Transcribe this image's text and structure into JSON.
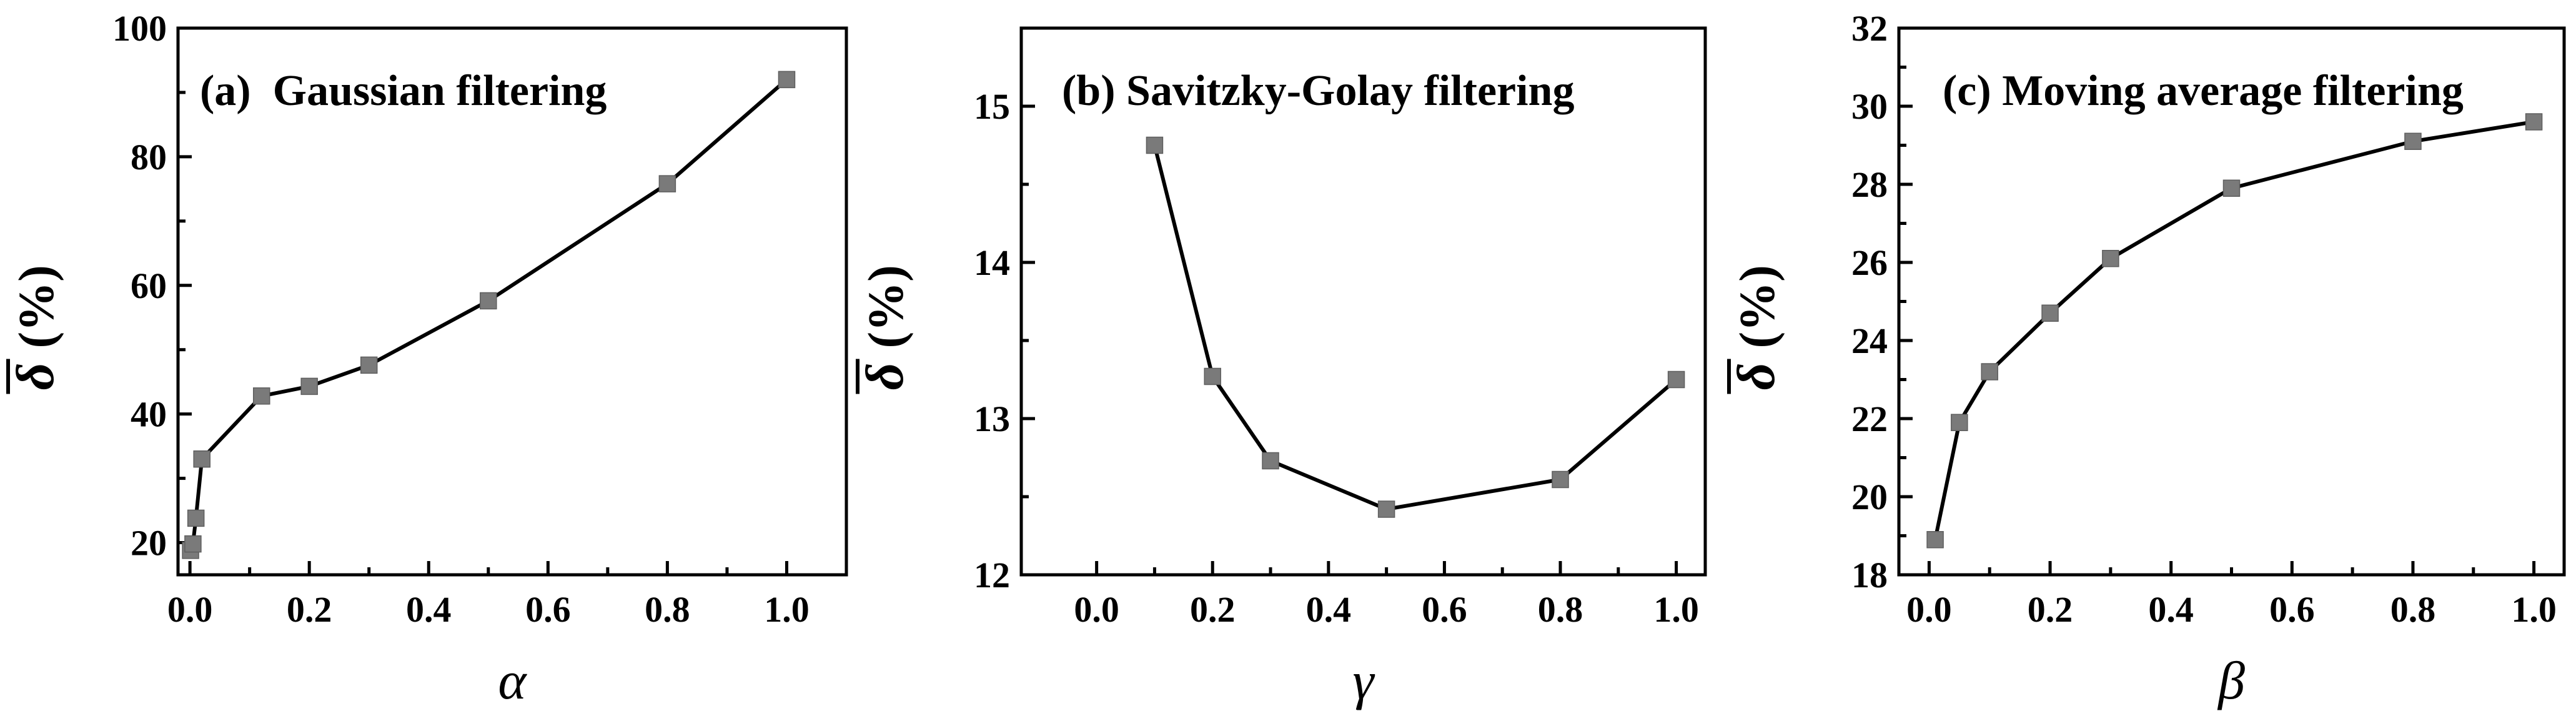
{
  "figure": {
    "axis_y_label": "(%)",
    "axis_y_symbol": "δ",
    "colors": {
      "marker": "#7a7a7a",
      "line": "#000000",
      "axes": "#000000"
    }
  },
  "chart_data": [
    {
      "type": "line",
      "title": "(a)  Gaussian filtering",
      "xlabel": "α",
      "ylabel": "δ (%)",
      "xlim": [
        -0.02,
        1.1
      ],
      "ylim": [
        15,
        100
      ],
      "xticks": [
        0.0,
        0.2,
        0.4,
        0.6,
        0.8,
        1.0
      ],
      "xtick_labels": [
        "0.0",
        "0.2",
        "0.4",
        "0.6",
        "0.8",
        "1.0"
      ],
      "yticks": [
        20,
        40,
        60,
        80,
        100
      ],
      "ytick_labels": [
        "20",
        "40",
        "60",
        "80",
        "100"
      ],
      "series": [
        {
          "x": [
            0.001,
            0.005,
            0.01,
            0.02,
            0.12,
            0.2,
            0.3,
            0.5,
            0.8,
            1.0
          ],
          "y": [
            18.8,
            19.8,
            23.8,
            33.0,
            42.8,
            44.3,
            47.6,
            57.6,
            75.8,
            92.0
          ]
        }
      ]
    },
    {
      "type": "line",
      "title": "(b) Savitzky-Golay filtering",
      "xlabel": "γ",
      "ylabel": "δ (%)",
      "xlim": [
        -0.13,
        1.05
      ],
      "ylim": [
        12,
        15.5
      ],
      "xticks": [
        0.0,
        0.2,
        0.4,
        0.6,
        0.8,
        1.0
      ],
      "xtick_labels": [
        "0.0",
        "0.2",
        "0.4",
        "0.6",
        "0.8",
        "1.0"
      ],
      "yticks": [
        12,
        13,
        14,
        15
      ],
      "ytick_labels": [
        "12",
        "13",
        "14",
        "15"
      ],
      "series": [
        {
          "x": [
            0.1,
            0.2,
            0.3,
            0.5,
            0.8,
            1.0
          ],
          "y": [
            14.75,
            13.27,
            12.73,
            12.42,
            12.61,
            13.25
          ]
        }
      ]
    },
    {
      "type": "line",
      "title": "(c) Moving average filtering",
      "xlabel": "β",
      "ylabel": "δ (%)",
      "xlim": [
        -0.05,
        1.05
      ],
      "ylim": [
        18,
        32
      ],
      "xticks": [
        0.0,
        0.2,
        0.4,
        0.6,
        0.8,
        1.0
      ],
      "xtick_labels": [
        "0.0",
        "0.2",
        "0.4",
        "0.6",
        "0.8",
        "1.0"
      ],
      "yticks": [
        18,
        20,
        22,
        24,
        26,
        28,
        30,
        32
      ],
      "ytick_labels": [
        "18",
        "20",
        "22",
        "24",
        "26",
        "28",
        "30",
        "32"
      ],
      "series": [
        {
          "x": [
            0.01,
            0.05,
            0.1,
            0.2,
            0.3,
            0.5,
            0.8,
            1.0
          ],
          "y": [
            18.9,
            21.9,
            23.2,
            24.7,
            26.1,
            27.9,
            29.1,
            29.6
          ]
        }
      ]
    }
  ]
}
